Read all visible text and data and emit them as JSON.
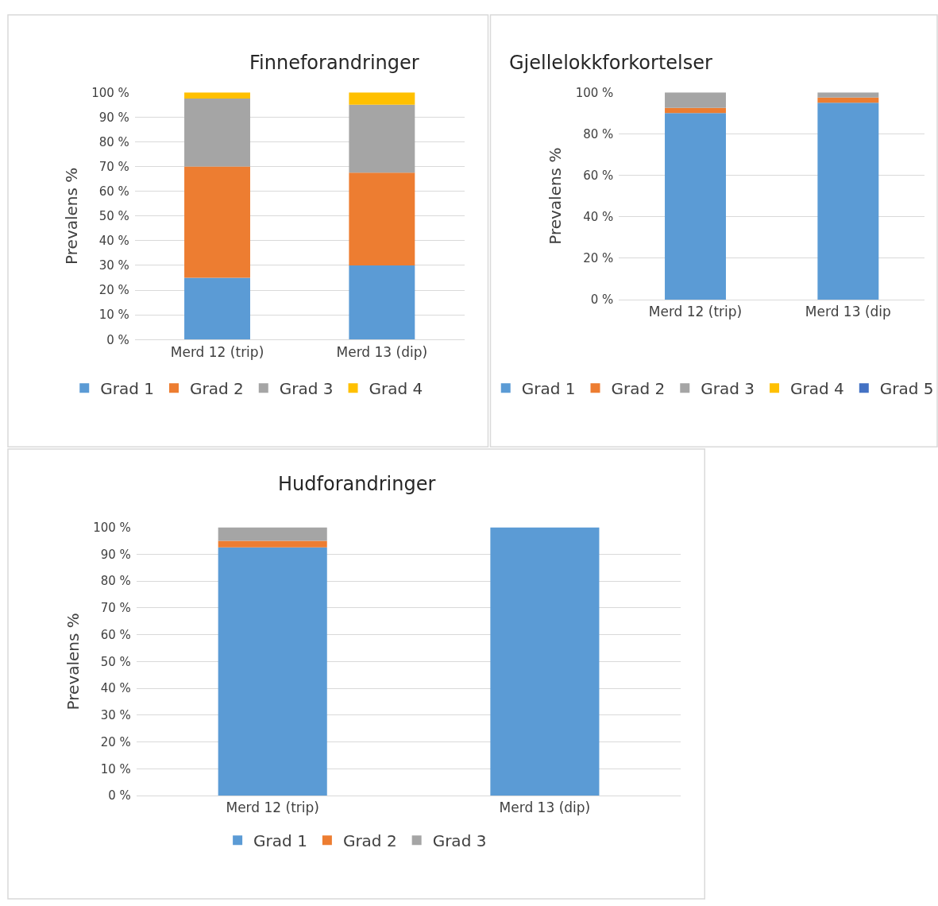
{
  "chart_data": [
    {
      "type": "bar",
      "stacked": true,
      "title": "Finneforandringer",
      "ylabel": "Prevalens %",
      "categories": [
        "Merd 12 (trip)",
        "Merd 13 (dip)"
      ],
      "series": [
        {
          "name": "Grad 1",
          "color": "#5b9bd5",
          "values": [
            25,
            30
          ]
        },
        {
          "name": "Grad 2",
          "color": "#ed7d31",
          "values": [
            45,
            37.5
          ]
        },
        {
          "name": "Grad 3",
          "color": "#a5a5a5",
          "values": [
            27.5,
            27.5
          ]
        },
        {
          "name": "Grad 4",
          "color": "#ffc000",
          "values": [
            2.5,
            5
          ]
        }
      ],
      "ylim": [
        0,
        100
      ],
      "yticks": [
        {
          "value": 0,
          "label": "0 %"
        },
        {
          "value": 10,
          "label": "10 %"
        },
        {
          "value": 20,
          "label": "20 %"
        },
        {
          "value": 30,
          "label": "30 %"
        },
        {
          "value": 40,
          "label": "40 %"
        },
        {
          "value": 50,
          "label": "50 %"
        },
        {
          "value": 60,
          "label": "60 %"
        },
        {
          "value": 70,
          "label": "70 %"
        },
        {
          "value": 80,
          "label": "80 %"
        },
        {
          "value": 90,
          "label": "90 %"
        },
        {
          "value": 100,
          "label": "100 %"
        }
      ],
      "grid": "y",
      "legend": "bottom"
    },
    {
      "type": "bar",
      "stacked": true,
      "title": "Gjellelokkforkortelser",
      "ylabel": "Prevalens %",
      "categories": [
        "Merd 12 (trip)",
        "Merd 13 (dip"
      ],
      "series": [
        {
          "name": "Grad 1",
          "color": "#5b9bd5",
          "values": [
            90,
            95
          ]
        },
        {
          "name": "Grad 2",
          "color": "#ed7d31",
          "values": [
            2.5,
            2.5
          ]
        },
        {
          "name": "Grad 3",
          "color": "#a5a5a5",
          "values": [
            7.5,
            2.5
          ]
        },
        {
          "name": "Grad 4",
          "color": "#ffc000",
          "values": [
            0,
            0
          ]
        },
        {
          "name": "Grad 5",
          "color": "#4472c4",
          "values": [
            0,
            0
          ]
        }
      ],
      "ylim": [
        0,
        100
      ],
      "yticks": [
        {
          "value": 0,
          "label": "0 %"
        },
        {
          "value": 20,
          "label": "20 %"
        },
        {
          "value": 40,
          "label": "40 %"
        },
        {
          "value": 60,
          "label": "60 %"
        },
        {
          "value": 80,
          "label": "80 %"
        },
        {
          "value": 100,
          "label": "100 %"
        }
      ],
      "grid": "y",
      "legend": "bottom"
    },
    {
      "type": "bar",
      "stacked": true,
      "title": "Hudforandringer",
      "ylabel": "Prevalens %",
      "categories": [
        "Merd 12 (trip)",
        "Merd 13 (dip)"
      ],
      "series": [
        {
          "name": "Grad 1",
          "color": "#5b9bd5",
          "values": [
            92.5,
            100
          ]
        },
        {
          "name": "Grad 2",
          "color": "#ed7d31",
          "values": [
            2.5,
            0
          ]
        },
        {
          "name": "Grad 3",
          "color": "#a5a5a5",
          "values": [
            5,
            0
          ]
        }
      ],
      "ylim": [
        0,
        100
      ],
      "yticks": [
        {
          "value": 0,
          "label": "0 %"
        },
        {
          "value": 10,
          "label": "10 %"
        },
        {
          "value": 20,
          "label": "20 %"
        },
        {
          "value": 30,
          "label": "30 %"
        },
        {
          "value": 40,
          "label": "40 %"
        },
        {
          "value": 50,
          "label": "50 %"
        },
        {
          "value": 60,
          "label": "60 %"
        },
        {
          "value": 70,
          "label": "70 %"
        },
        {
          "value": 80,
          "label": "80 %"
        },
        {
          "value": 90,
          "label": "90 %"
        },
        {
          "value": 100,
          "label": "100 %"
        }
      ],
      "grid": "y",
      "legend": "bottom"
    }
  ]
}
